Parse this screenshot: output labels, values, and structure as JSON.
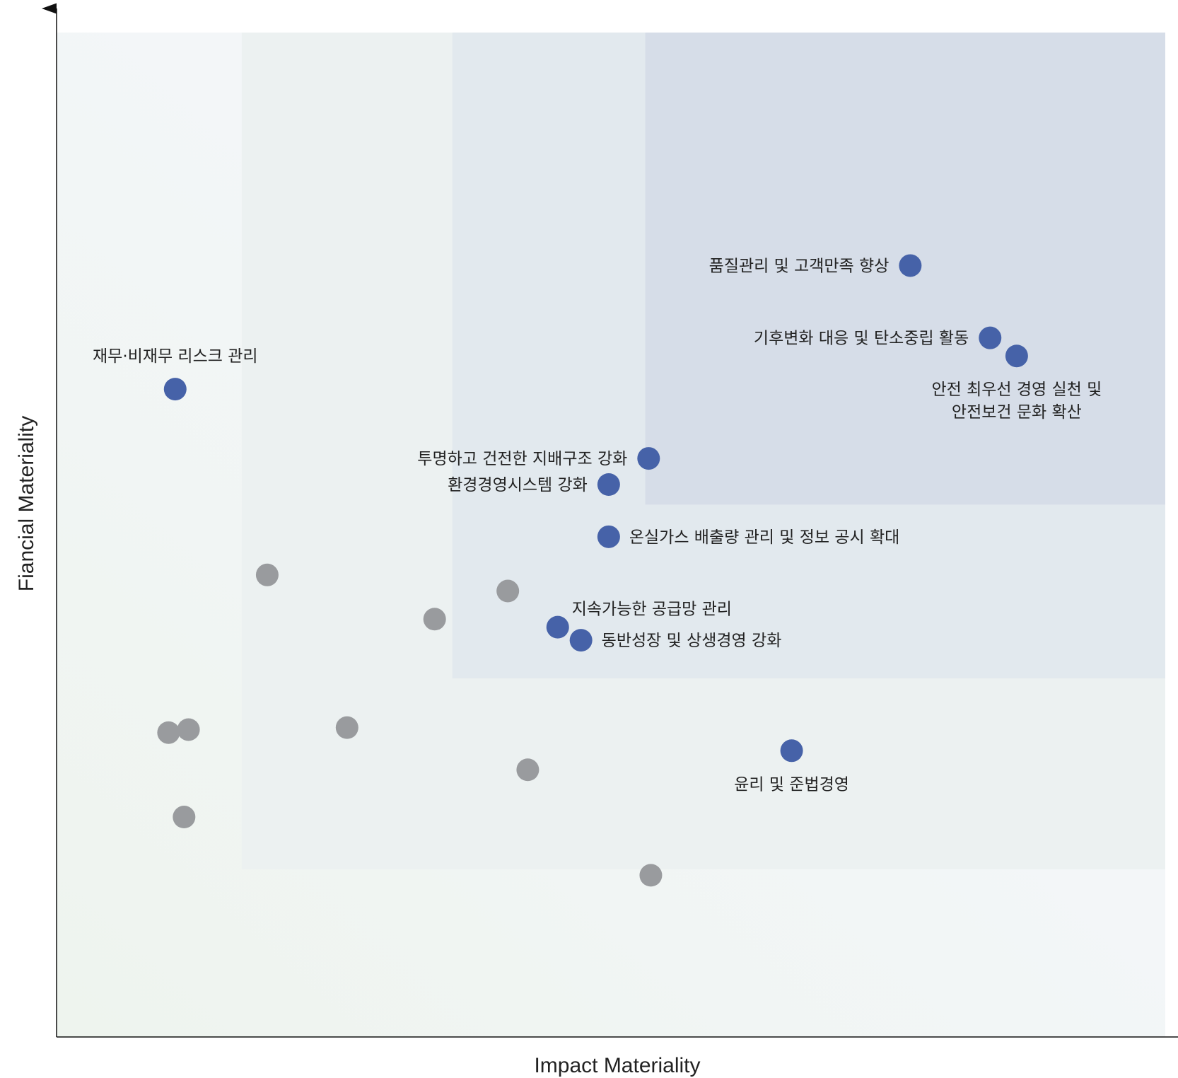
{
  "chart_data": {
    "type": "scatter",
    "title": "",
    "xlabel": "Impact Materiality",
    "ylabel": "Fiancial Materiality",
    "xlim": [
      0,
      100
    ],
    "ylim": [
      0,
      100
    ],
    "grid": false,
    "zones": [
      {
        "name": "low-priority",
        "x_from": 0,
        "x_to": 100,
        "y_from": 0,
        "y_to": 100,
        "color": "#f3f6f5"
      },
      {
        "name": "medium-priority",
        "x_from": 16.7,
        "x_to": 100,
        "y_from": 16.7,
        "y_to": 100,
        "color": "#ecf1f1"
      },
      {
        "name": "high-priority",
        "x_from": 35.7,
        "x_to": 100,
        "y_from": 35.7,
        "y_to": 100,
        "color": "#e2e9ee"
      },
      {
        "name": "top-priority",
        "x_from": 53.1,
        "x_to": 100,
        "y_from": 53,
        "y_to": 100,
        "color": "#d6dde8"
      }
    ],
    "colors": {
      "material": "#4662a8",
      "other": "#999b9e",
      "axis": "#222222"
    },
    "series": [
      {
        "name": "",
        "group": "material",
        "points": [
          {
            "label": [
              "품질관리 및 고객만족 향상"
            ],
            "x": 77.0,
            "y": 76.8,
            "anchor": "end"
          },
          {
            "label": [
              "기후변화 대응 및 탄소중립 활동"
            ],
            "x": 84.2,
            "y": 69.6,
            "anchor": "end"
          },
          {
            "label": [
              "안전 최우선 경영 실천 및",
              "안전보건 문화 확산"
            ],
            "x": 86.6,
            "y": 67.8,
            "anchor": "below"
          },
          {
            "label": [
              "재무·비재무 리스크 관리"
            ],
            "x": 10.7,
            "y": 64.5,
            "anchor": "above"
          },
          {
            "label": [
              "투명하고 건전한 지배구조 강화"
            ],
            "x": 53.4,
            "y": 57.6,
            "anchor": "end"
          },
          {
            "label": [
              "환경경영시스템 강화"
            ],
            "x": 49.8,
            "y": 55.0,
            "anchor": "end"
          },
          {
            "label": [
              "온실가스 배출량 관리 및 정보 공시 확대"
            ],
            "x": 49.8,
            "y": 49.8,
            "anchor": "start"
          },
          {
            "label": [
              "지속가능한 공급망 관리"
            ],
            "x": 45.2,
            "y": 40.8,
            "anchor": "above-right"
          },
          {
            "label": [
              "동반성장 및 상생경영 강화"
            ],
            "x": 47.3,
            "y": 39.5,
            "anchor": "start"
          },
          {
            "label": [
              "윤리 및 준법경영"
            ],
            "x": 66.3,
            "y": 28.5,
            "anchor": "below"
          }
        ]
      },
      {
        "name": "",
        "group": "other",
        "points": [
          {
            "x": 19.0,
            "y": 46.0
          },
          {
            "x": 40.7,
            "y": 44.4
          },
          {
            "x": 34.1,
            "y": 41.6
          },
          {
            "x": 26.2,
            "y": 30.8
          },
          {
            "x": 42.5,
            "y": 26.6
          },
          {
            "x": 10.1,
            "y": 30.3
          },
          {
            "x": 11.9,
            "y": 30.6
          },
          {
            "x": 11.5,
            "y": 21.9
          },
          {
            "x": 53.6,
            "y": 16.1
          }
        ]
      }
    ]
  }
}
